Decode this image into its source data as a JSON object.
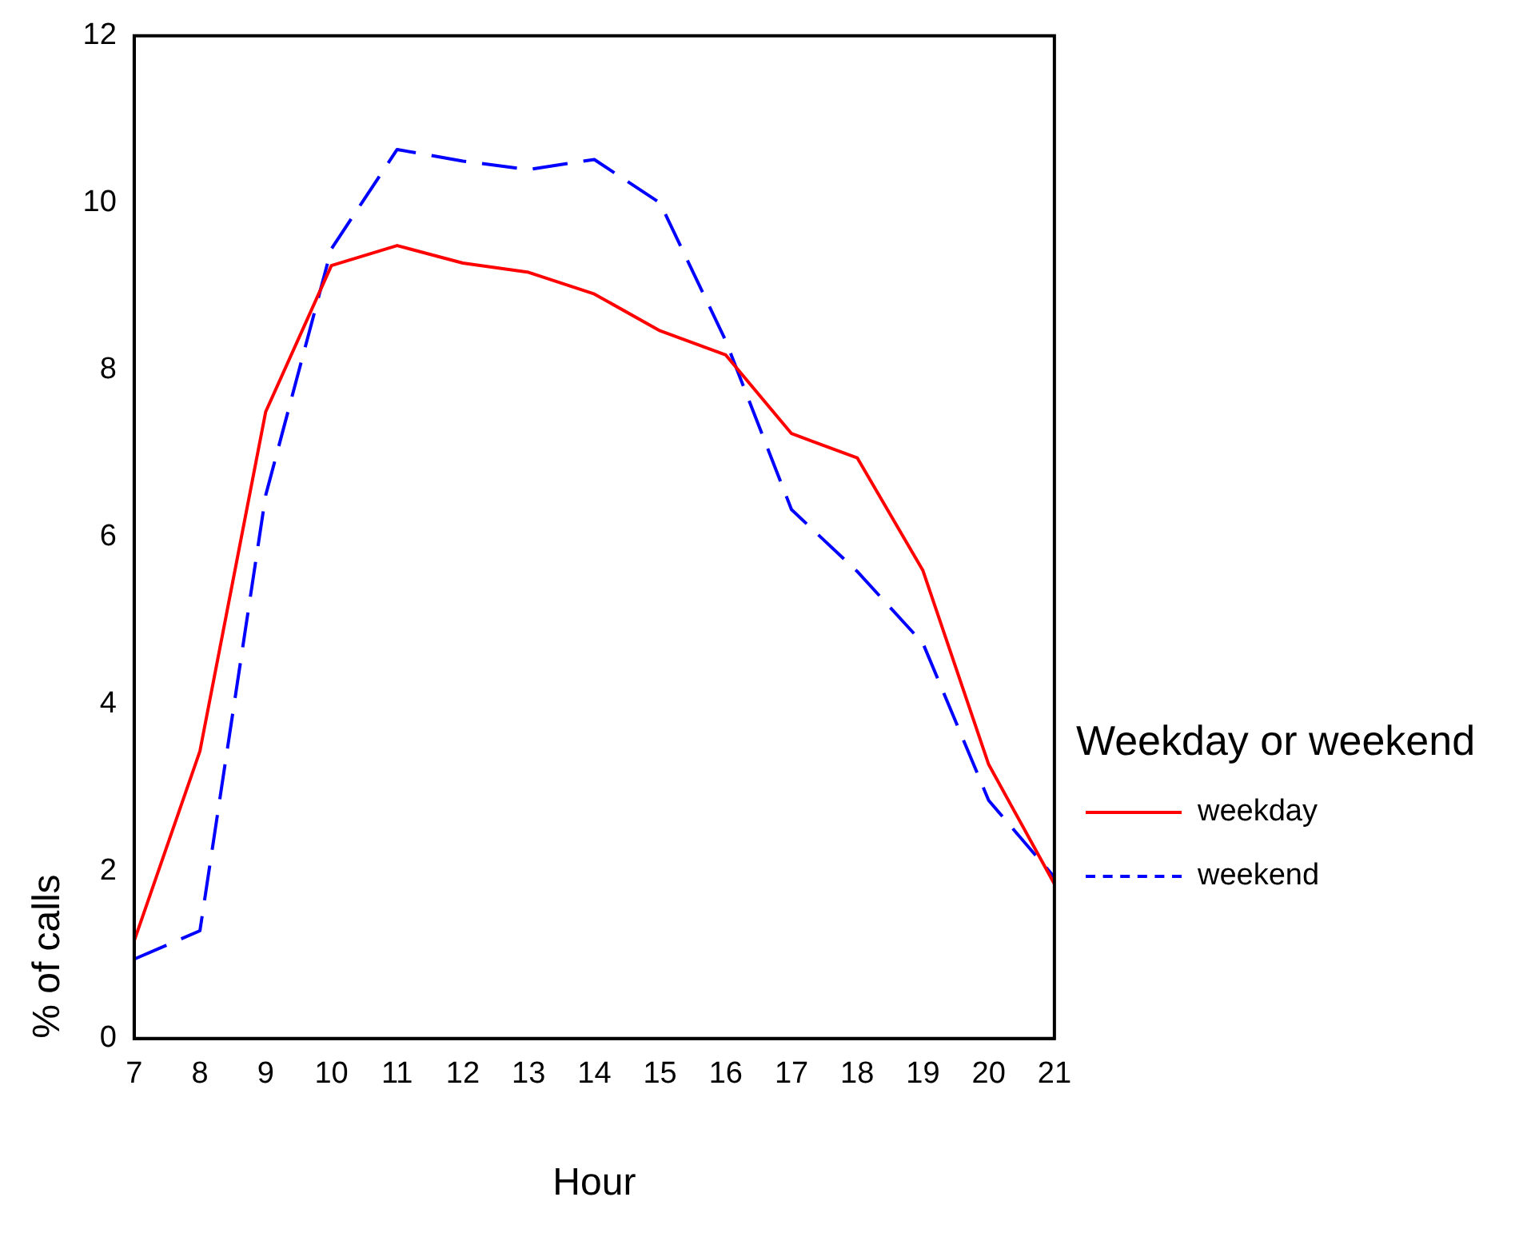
{
  "chart_data": {
    "type": "line",
    "xlabel": "Hour",
    "ylabel": "% of calls",
    "legend_title": "Weekday or weekend",
    "x": [
      7,
      8,
      9,
      10,
      11,
      12,
      13,
      14,
      15,
      16,
      17,
      18,
      19,
      20,
      21
    ],
    "series": [
      {
        "name": "weekday",
        "color": "#ff0000",
        "line_style": "solid",
        "values": [
          1.17,
          3.44,
          7.5,
          9.25,
          9.49,
          9.28,
          9.17,
          8.91,
          8.47,
          8.18,
          7.24,
          6.95,
          5.6,
          3.28,
          1.85
        ]
      },
      {
        "name": "weekend",
        "color": "#0000ff",
        "line_style": "dashed",
        "values": [
          0.95,
          1.29,
          6.5,
          9.45,
          10.64,
          10.5,
          10.4,
          10.52,
          10.0,
          8.35,
          6.33,
          5.59,
          4.73,
          2.85,
          1.93
        ]
      }
    ],
    "xlim": [
      7,
      21
    ],
    "xticks": [
      7,
      8,
      9,
      10,
      11,
      12,
      13,
      14,
      15,
      16,
      17,
      18,
      19,
      20,
      21
    ],
    "ylim": [
      0,
      12
    ],
    "yticks": [
      0,
      2,
      4,
      6,
      8,
      10,
      12
    ],
    "grid": false,
    "legend": "right",
    "marker": "none"
  }
}
